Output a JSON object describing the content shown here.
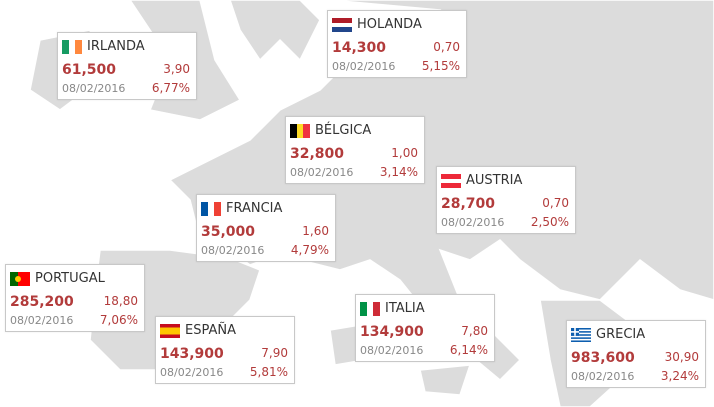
{
  "countries": [
    {
      "name": "IRLANDA",
      "value": "61,500",
      "change": "3,90",
      "date": "08/02/2016",
      "percent": "6,77%"
    },
    {
      "name": "HOLANDA",
      "value": "14,300",
      "change": "0,70",
      "date": "08/02/2016",
      "percent": "5,15%"
    },
    {
      "name": "BÉLGICA",
      "value": "32,800",
      "change": "1,00",
      "date": "08/02/2016",
      "percent": "3,14%"
    },
    {
      "name": "AUSTRIA",
      "value": "28,700",
      "change": "0,70",
      "date": "08/02/2016",
      "percent": "2,50%"
    },
    {
      "name": "FRANCIA",
      "value": "35,000",
      "change": "1,60",
      "date": "08/02/2016",
      "percent": "4,79%"
    },
    {
      "name": "PORTUGAL",
      "value": "285,200",
      "change": "18,80",
      "date": "08/02/2016",
      "percent": "7,06%"
    },
    {
      "name": "ESPAÑA",
      "value": "143,900",
      "change": "7,90",
      "date": "08/02/2016",
      "percent": "5,81%"
    },
    {
      "name": "ITALIA",
      "value": "134,900",
      "change": "7,80",
      "date": "08/02/2016",
      "percent": "6,14%"
    },
    {
      "name": "GRECIA",
      "value": "983,600",
      "change": "30,90",
      "date": "08/02/2016",
      "percent": "3,24%"
    }
  ]
}
